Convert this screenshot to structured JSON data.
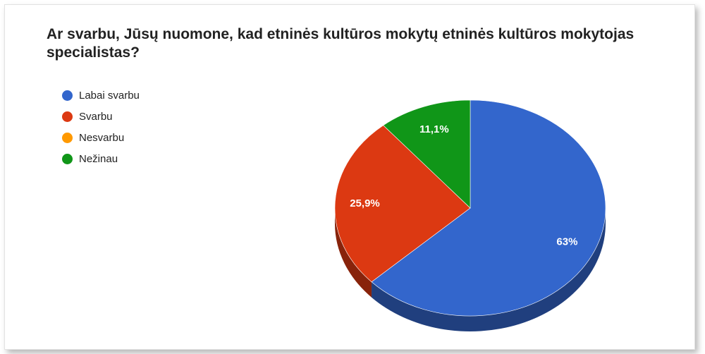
{
  "chart_data": {
    "type": "pie",
    "title": "Ar svarbu, Jūsų nuomone, kad etninės kultūros mokytų etninės kultūros mokytojas specialistas?",
    "legend_position": "top-left",
    "three_d": true,
    "slices": [
      {
        "label": "Labai svarbu",
        "value": 63.0,
        "display": "63%",
        "color": "#3366cc"
      },
      {
        "label": "Svarbu",
        "value": 25.9,
        "display": "25,9%",
        "color": "#dc3912"
      },
      {
        "label": "Nesvarbu",
        "value": 0,
        "display": "",
        "color": "#ff9900"
      },
      {
        "label": "Nežinau",
        "value": 11.1,
        "display": "11,1%",
        "color": "#109618"
      }
    ]
  }
}
